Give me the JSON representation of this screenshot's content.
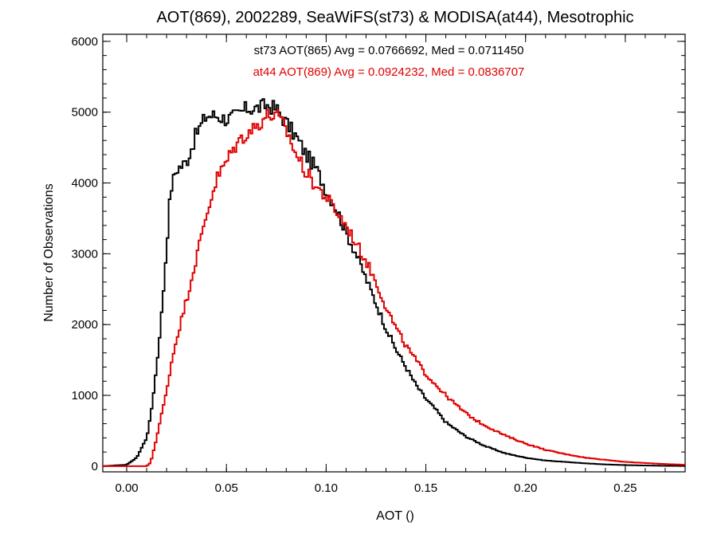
{
  "chart_data": {
    "type": "line",
    "style": "histogram-step",
    "title": "AOT(869), 2002289, SeaWiFS(st73) & MODISA(at44), Mesotrophic",
    "xlabel": "AOT ()",
    "ylabel": "Number of Observations",
    "xlim": [
      -0.012,
      0.28
    ],
    "ylim": [
      -80,
      6100
    ],
    "xticks": [
      0.0,
      0.05,
      0.1,
      0.15,
      0.2,
      0.25
    ],
    "xtick_labels": [
      "0.00",
      "0.05",
      "0.10",
      "0.15",
      "0.20",
      "0.25"
    ],
    "yticks": [
      0,
      1000,
      2000,
      3000,
      4000,
      5000,
      6000
    ],
    "ytick_labels": [
      "0",
      "1000",
      "2000",
      "3000",
      "4000",
      "5000",
      "6000"
    ],
    "grid": false,
    "annotations": [
      {
        "text": "st73 AOT(865) Avg = 0.0766692, Med = 0.0711450",
        "color": "#000000"
      },
      {
        "text": "at44 AOT(869) Avg = 0.0924232, Med = 0.0836707",
        "color": "#e00000"
      }
    ],
    "series": [
      {
        "color": "#000000",
        "x": [
          -0.012,
          0.0,
          0.005,
          0.01,
          0.012,
          0.015,
          0.018,
          0.02,
          0.022,
          0.025,
          0.028,
          0.03,
          0.035,
          0.04,
          0.045,
          0.05,
          0.055,
          0.06,
          0.065,
          0.07,
          0.075,
          0.08,
          0.085,
          0.09,
          0.095,
          0.1,
          0.105,
          0.11,
          0.115,
          0.12,
          0.125,
          0.13,
          0.135,
          0.14,
          0.145,
          0.15,
          0.155,
          0.16,
          0.17,
          0.18,
          0.19,
          0.2,
          0.21,
          0.22,
          0.23,
          0.24,
          0.25,
          0.26,
          0.27,
          0.28
        ],
        "y": [
          0,
          20,
          120,
          400,
          700,
          1400,
          2300,
          3100,
          3900,
          4200,
          4250,
          4300,
          4700,
          4950,
          4950,
          4900,
          4950,
          5050,
          5050,
          5100,
          5050,
          4850,
          4650,
          4400,
          4200,
          3900,
          3650,
          3300,
          3000,
          2650,
          2300,
          1950,
          1650,
          1400,
          1150,
          950,
          800,
          620,
          420,
          280,
          180,
          120,
          80,
          60,
          40,
          25,
          15,
          10,
          5,
          3
        ]
      },
      {
        "color": "#e00000",
        "x": [
          -0.012,
          0.0,
          0.01,
          0.012,
          0.015,
          0.018,
          0.02,
          0.022,
          0.025,
          0.03,
          0.035,
          0.04,
          0.045,
          0.05,
          0.055,
          0.06,
          0.065,
          0.07,
          0.075,
          0.08,
          0.085,
          0.09,
          0.095,
          0.1,
          0.105,
          0.11,
          0.115,
          0.12,
          0.125,
          0.13,
          0.135,
          0.14,
          0.145,
          0.15,
          0.155,
          0.16,
          0.165,
          0.17,
          0.175,
          0.18,
          0.19,
          0.2,
          0.21,
          0.22,
          0.23,
          0.24,
          0.25,
          0.26,
          0.27,
          0.28
        ],
        "y": [
          0,
          0,
          0,
          50,
          400,
          800,
          1050,
          1400,
          1800,
          2350,
          2950,
          3550,
          4050,
          4300,
          4550,
          4700,
          4800,
          4950,
          4950,
          4750,
          4400,
          4150,
          3950,
          3800,
          3600,
          3400,
          3150,
          2900,
          2600,
          2250,
          1950,
          1700,
          1500,
          1300,
          1150,
          1000,
          870,
          750,
          650,
          570,
          430,
          320,
          230,
          170,
          120,
          90,
          60,
          45,
          30,
          20
        ]
      }
    ]
  }
}
